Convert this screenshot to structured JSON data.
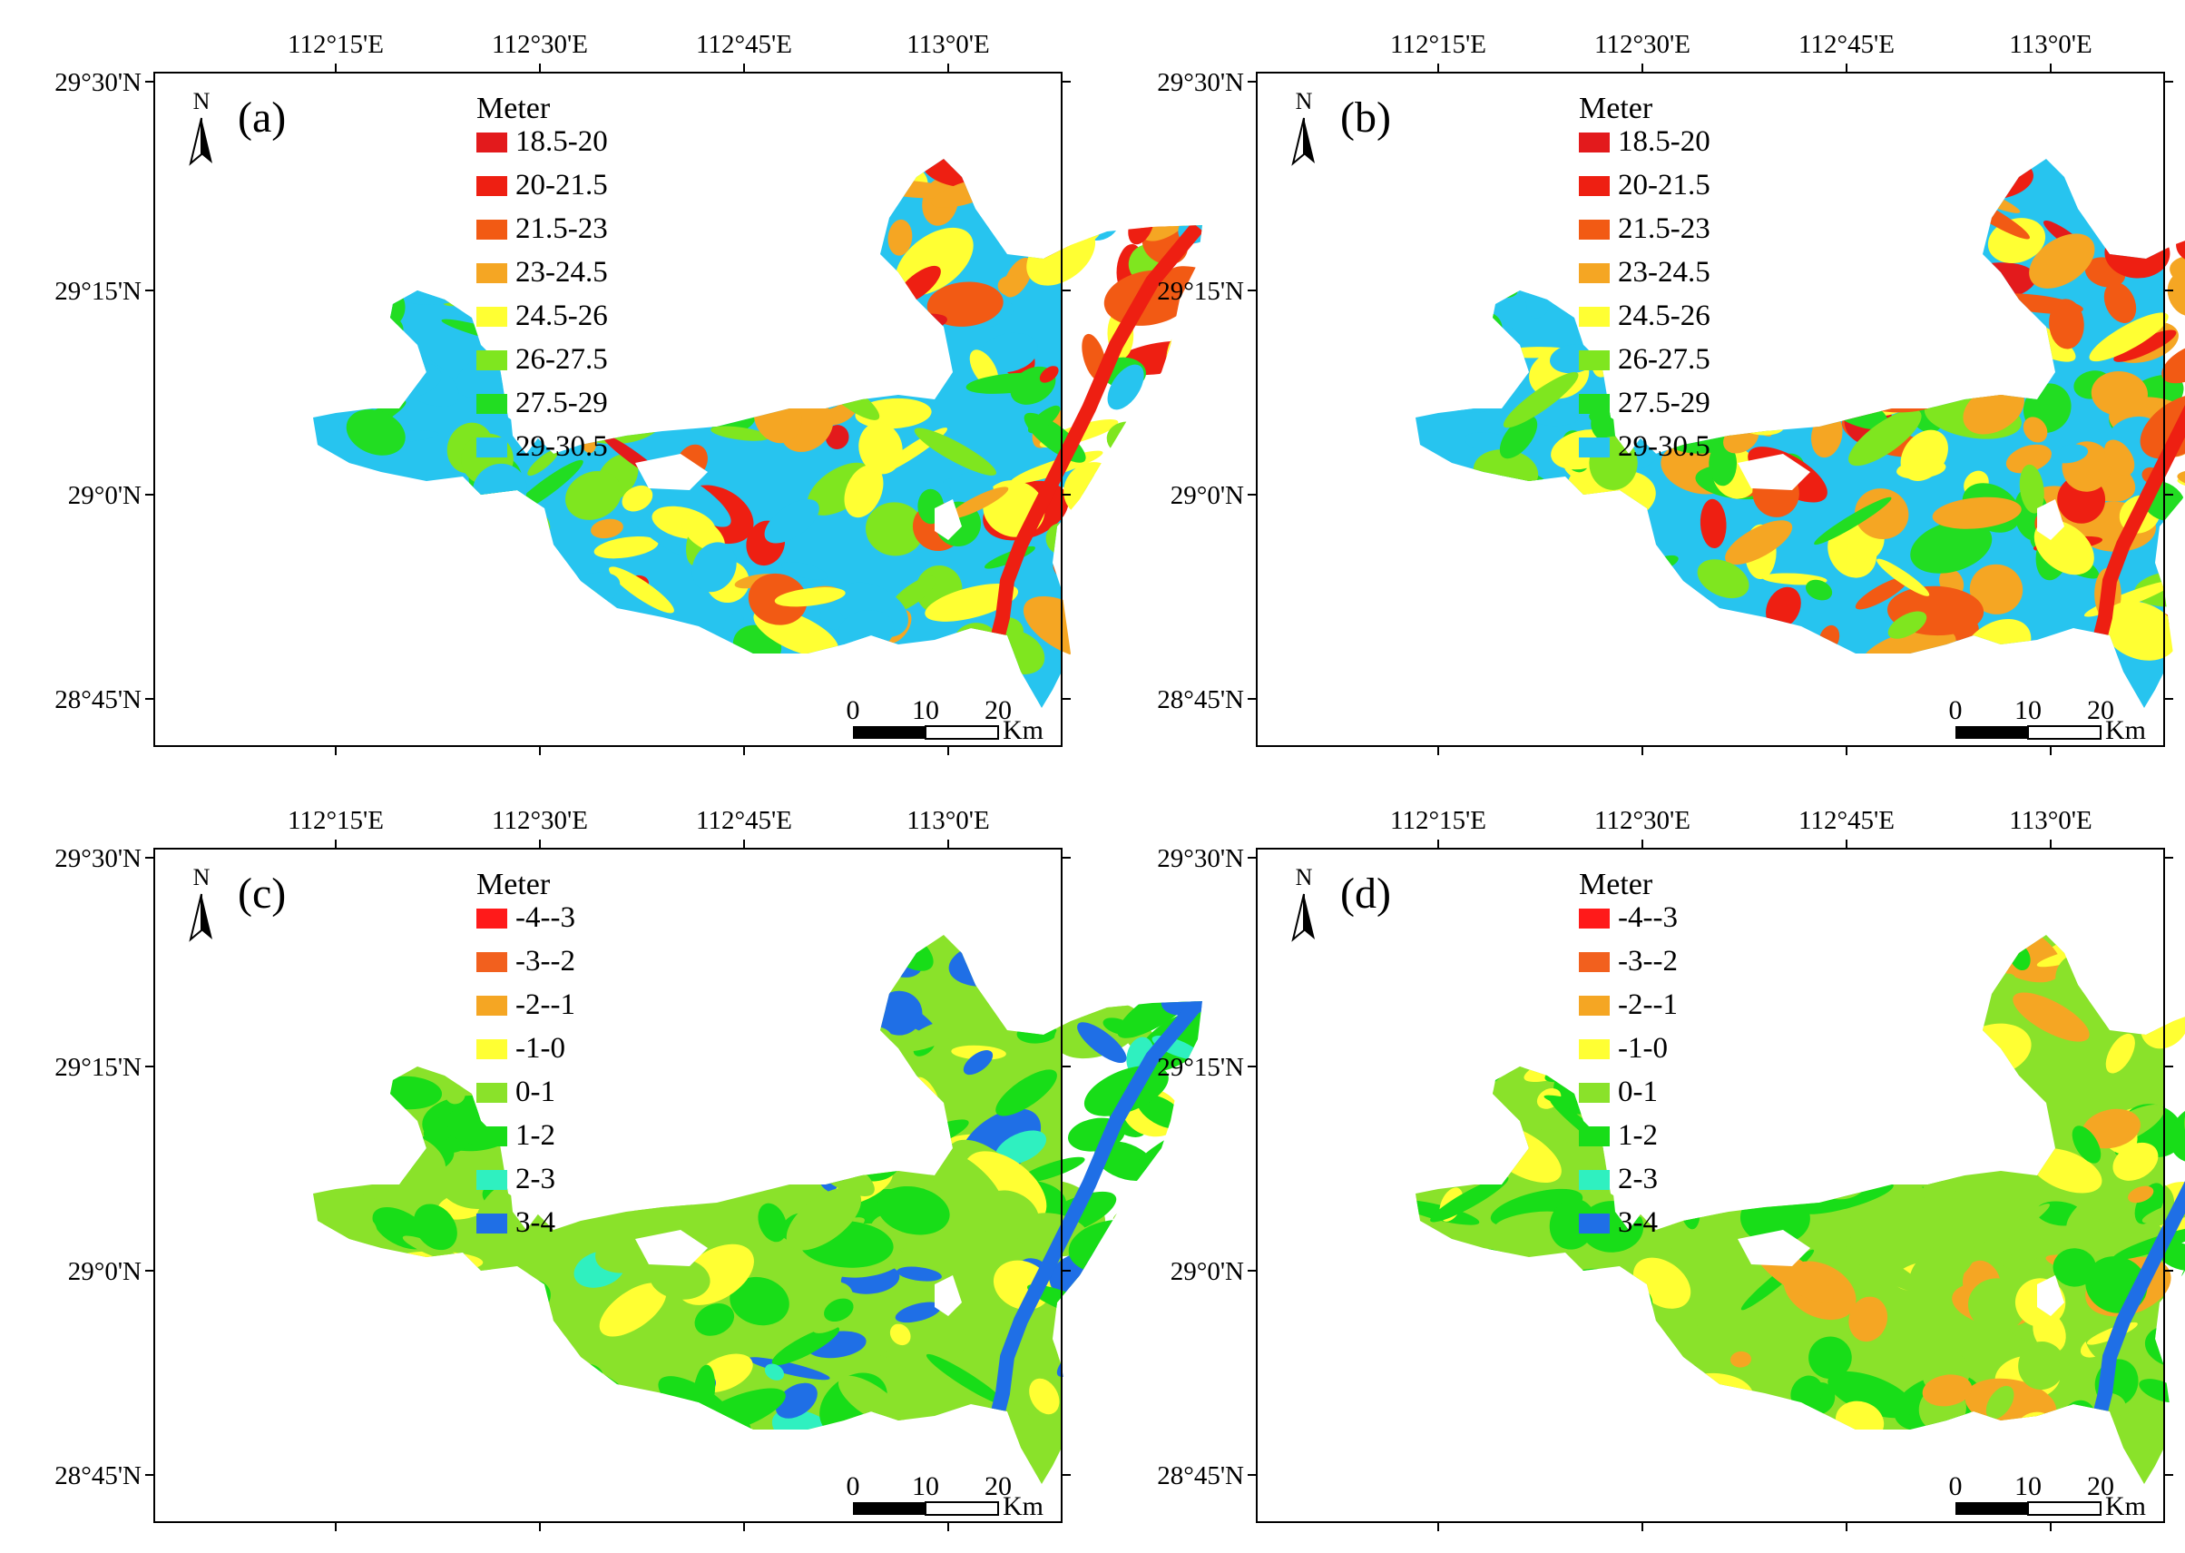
{
  "figure": {
    "lon_labels": [
      "112°15'E",
      "112°30'E",
      "112°45'E",
      "113°0'E"
    ],
    "lat_labels": [
      "29°30'N",
      "29°15'N",
      "29°0'N",
      "28°45'N"
    ],
    "north_arrow_label": "N",
    "scale_bar": {
      "ticks": [
        "0",
        "10",
        "20"
      ],
      "unit": "Km"
    }
  },
  "panels": [
    {
      "letter": "(a)",
      "legend_title": "Meter",
      "legend": [
        {
          "label": "18.5-20",
          "color": "#e31a1c"
        },
        {
          "label": "20-21.5",
          "color": "#ee1f12"
        },
        {
          "label": "21.5-23",
          "color": "#f25a14"
        },
        {
          "label": "23-24.5",
          "color": "#f5a623"
        },
        {
          "label": "24.5-26",
          "color": "#ffff33"
        },
        {
          "label": "26-27.5",
          "color": "#7fe61f"
        },
        {
          "label": "27.5-29",
          "color": "#22dd22"
        },
        {
          "label": "29-30.5",
          "color": "#27c4ef"
        }
      ]
    },
    {
      "letter": "(b)",
      "legend_title": "Meter",
      "legend": [
        {
          "label": "18.5-20",
          "color": "#e31a1c"
        },
        {
          "label": "20-21.5",
          "color": "#ee1f12"
        },
        {
          "label": "21.5-23",
          "color": "#f25a14"
        },
        {
          "label": "23-24.5",
          "color": "#f5a623"
        },
        {
          "label": "24.5-26",
          "color": "#ffff33"
        },
        {
          "label": "26-27.5",
          "color": "#7fe61f"
        },
        {
          "label": "27.5-29",
          "color": "#22dd22"
        },
        {
          "label": "29-30.5",
          "color": "#27c4ef"
        }
      ]
    },
    {
      "letter": "(c)",
      "legend_title": "Meter",
      "legend": [
        {
          "label": "-4--3",
          "color": "#ff1a1a"
        },
        {
          "label": "-3--2",
          "color": "#f2601e"
        },
        {
          "label": "-2--1",
          "color": "#f5a623"
        },
        {
          "label": "-1-0",
          "color": "#ffff33"
        },
        {
          "label": "0-1",
          "color": "#8ae22a"
        },
        {
          "label": "1-2",
          "color": "#18dd18"
        },
        {
          "label": "2-3",
          "color": "#2ff0c0"
        },
        {
          "label": "3-4",
          "color": "#1f6fe6"
        }
      ]
    },
    {
      "letter": "(d)",
      "legend_title": "Meter",
      "legend": [
        {
          "label": "-4--3",
          "color": "#ff1a1a"
        },
        {
          "label": "-3--2",
          "color": "#f2601e"
        },
        {
          "label": "-2--1",
          "color": "#f5a623"
        },
        {
          "label": "-1-0",
          "color": "#ffff33"
        },
        {
          "label": "0-1",
          "color": "#8ae22a"
        },
        {
          "label": "1-2",
          "color": "#18dd18"
        },
        {
          "label": "2-3",
          "color": "#2ff0c0"
        },
        {
          "label": "3-4",
          "color": "#1f6fe6"
        }
      ]
    }
  ]
}
